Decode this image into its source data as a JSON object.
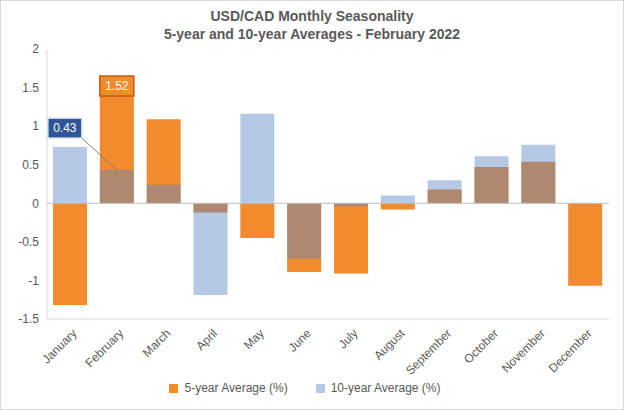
{
  "chart_data": {
    "type": "bar",
    "title": "USD/CAD Monthly Seasonality",
    "subtitle": "5-year and 10-year Averages - February 2022",
    "categories": [
      "January",
      "February",
      "March",
      "April",
      "May",
      "June",
      "July",
      "August",
      "September",
      "October",
      "November",
      "December"
    ],
    "series": [
      {
        "name": "5-year Average (%)",
        "color": "#f28a2e",
        "values": [
          -1.32,
          1.52,
          1.09,
          -0.12,
          -0.45,
          -0.89,
          -0.91,
          -0.08,
          0.18,
          0.47,
          0.54,
          -1.07
        ]
      },
      {
        "name": "10-year Average (%)",
        "color": "#5b84c4",
        "values": [
          0.73,
          0.43,
          0.24,
          -1.19,
          1.16,
          -0.72,
          -0.04,
          0.1,
          0.3,
          0.61,
          0.76,
          0
        ]
      }
    ],
    "ylim": [
      -1.5,
      2
    ],
    "yticks": [
      -1.5,
      -1,
      -0.5,
      0,
      0.5,
      1,
      1.5,
      2
    ],
    "grid": false,
    "legend": "bottom",
    "annotations": [
      {
        "category": "February",
        "series": "5-year Average (%)",
        "text": "1.52"
      },
      {
        "category": "February",
        "series": "10-year Average (%)",
        "text": "0.43"
      }
    ]
  }
}
